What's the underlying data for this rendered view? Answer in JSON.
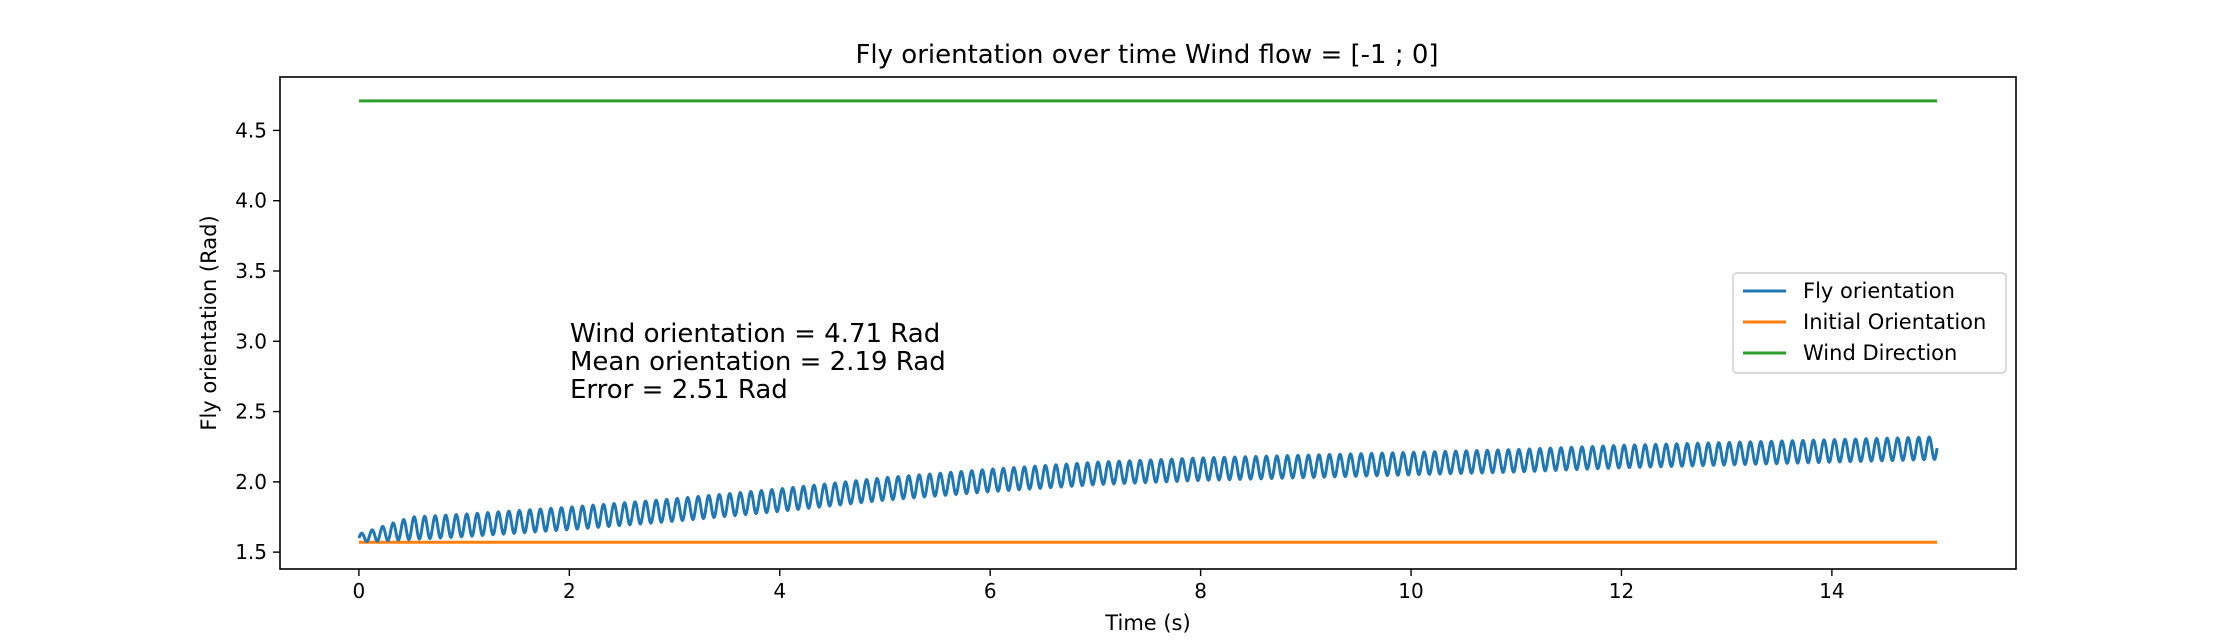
{
  "chart_data": {
    "type": "line",
    "title": "Fly orientation over time Wind flow = [-1 ; 0]",
    "xlabel": "Time (s)",
    "ylabel": "Fly orientation (Rad)",
    "xlim": [
      -0.75,
      15.75
    ],
    "ylim": [
      1.38,
      4.88
    ],
    "xticks": [
      {
        "value": 0,
        "label": "0"
      },
      {
        "value": 2,
        "label": "2"
      },
      {
        "value": 4,
        "label": "4"
      },
      {
        "value": 6,
        "label": "6"
      },
      {
        "value": 8,
        "label": "8"
      },
      {
        "value": 10,
        "label": "10"
      },
      {
        "value": 12,
        "label": "12"
      },
      {
        "value": 14,
        "label": "14"
      }
    ],
    "yticks": [
      {
        "value": 1.5,
        "label": "1.5"
      },
      {
        "value": 2.0,
        "label": "2.0"
      },
      {
        "value": 2.5,
        "label": "2.5"
      },
      {
        "value": 3.0,
        "label": "3.0"
      },
      {
        "value": 3.5,
        "label": "3.5"
      },
      {
        "value": 4.0,
        "label": "4.0"
      },
      {
        "value": 4.5,
        "label": "4.5"
      }
    ],
    "grid": false,
    "legend_position": "center-right",
    "series": [
      {
        "name": "Fly orientation",
        "color": "#1f77b4",
        "style": "oscillating",
        "oscillation_period_s": 0.1,
        "amplitude": 0.08,
        "x": [
          0,
          0.5,
          1,
          2,
          3,
          4,
          5,
          6,
          7,
          8,
          9,
          10,
          11,
          12,
          13,
          14,
          15
        ],
        "y": [
          1.6,
          1.67,
          1.69,
          1.74,
          1.8,
          1.87,
          1.95,
          2.01,
          2.06,
          2.09,
          2.11,
          2.13,
          2.15,
          2.18,
          2.2,
          2.22,
          2.24
        ]
      },
      {
        "name": "Initial Orientation",
        "color": "#ff7f0e",
        "style": "line",
        "x": [
          0,
          15
        ],
        "y": [
          1.57,
          1.57
        ]
      },
      {
        "name": "Wind Direction",
        "color": "#2ca02c",
        "style": "line",
        "x": [
          0,
          15
        ],
        "y": [
          4.71,
          4.71
        ]
      }
    ],
    "annotation": {
      "lines": [
        "Wind orientation = 4.71 Rad",
        "Mean orientation = 2.19 Rad",
        "Error = 2.51 Rad"
      ]
    }
  }
}
